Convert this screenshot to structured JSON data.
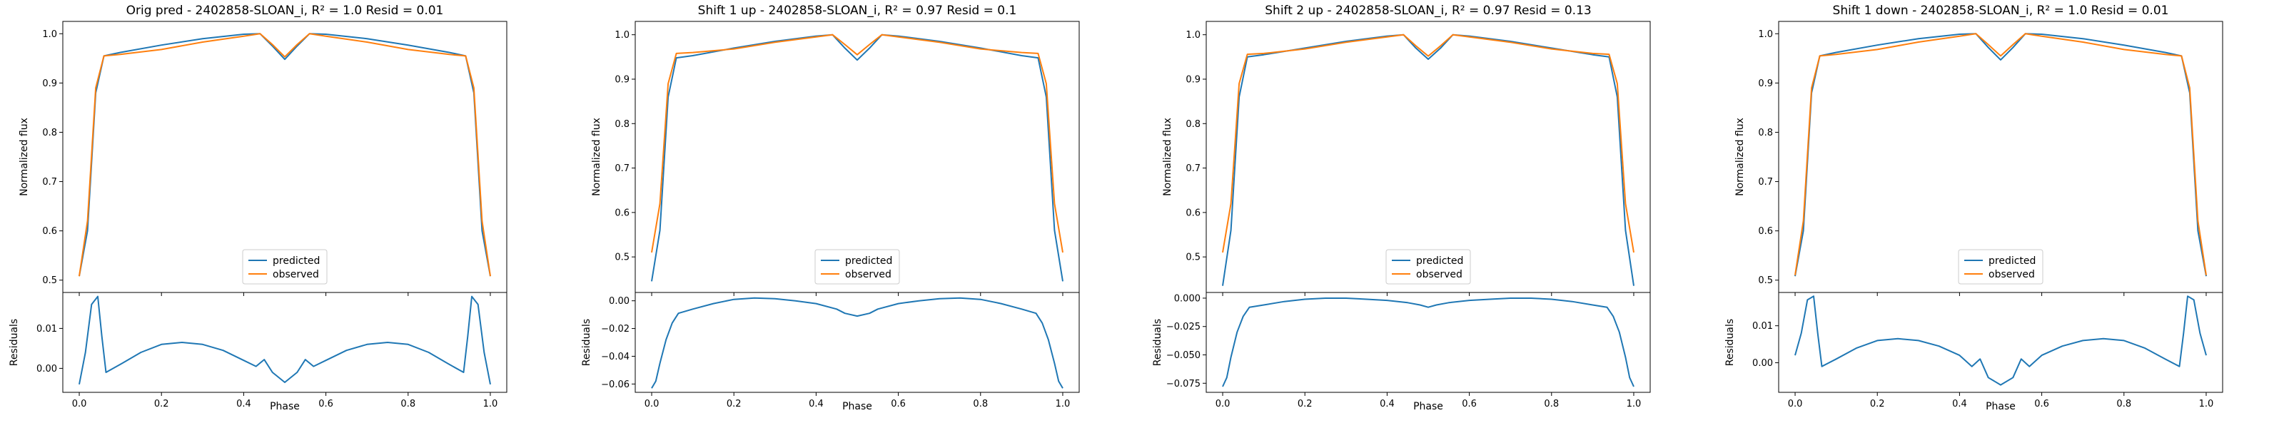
{
  "colors": {
    "predicted": "#1f77b4",
    "observed": "#ff7f0e"
  },
  "chart_data": [
    {
      "type": "line",
      "title": "Orig pred - 2402858-SLOAN_i, R² = 1.0 Resid = 0.01",
      "xlabel": "Phase",
      "ylabel": "Normalized flux",
      "resid_ylabel": "Residuals",
      "xlim": [
        -0.04,
        1.04
      ],
      "xticks": [
        0.0,
        0.2,
        0.4,
        0.6,
        0.8,
        1.0
      ],
      "xtick_labels": [
        "0.0",
        "0.2",
        "0.4",
        "0.6",
        "0.8",
        "1.0"
      ],
      "ylim": [
        0.475,
        1.025
      ],
      "yticks": [
        0.5,
        0.6,
        0.7,
        0.8,
        0.9,
        1.0
      ],
      "ytick_labels": [
        "0.5",
        "0.6",
        "0.7",
        "0.8",
        "0.9",
        "1.0"
      ],
      "resid_ylim": [
        -0.006,
        0.019
      ],
      "resid_yticks": [
        0.0,
        0.01
      ],
      "resid_ytick_labels": [
        "0.00",
        "0.01"
      ],
      "legend": "lower center",
      "series": [
        {
          "name": "predicted",
          "x": [
            0.0,
            0.02,
            0.04,
            0.06,
            0.1,
            0.2,
            0.3,
            0.4,
            0.44,
            0.47,
            0.5,
            0.53,
            0.56,
            0.6,
            0.7,
            0.8,
            0.9,
            0.94,
            0.96,
            0.98,
            1.0
          ],
          "y": [
            0.508,
            0.6,
            0.88,
            0.955,
            0.962,
            0.977,
            0.99,
            0.999,
            1.0,
            0.975,
            0.948,
            0.975,
            1.0,
            0.999,
            0.99,
            0.977,
            0.962,
            0.955,
            0.88,
            0.6,
            0.508
          ]
        },
        {
          "name": "observed",
          "x": [
            0.0,
            0.02,
            0.04,
            0.06,
            0.1,
            0.2,
            0.3,
            0.4,
            0.44,
            0.47,
            0.5,
            0.53,
            0.56,
            0.6,
            0.7,
            0.8,
            0.9,
            0.94,
            0.96,
            0.98,
            1.0
          ],
          "y": [
            0.508,
            0.62,
            0.89,
            0.955,
            0.958,
            0.968,
            0.983,
            0.995,
            1.0,
            0.978,
            0.953,
            0.978,
            1.0,
            0.995,
            0.983,
            0.968,
            0.958,
            0.955,
            0.89,
            0.62,
            0.508
          ]
        },
        {
          "name": "residual",
          "x": [
            0.0,
            0.015,
            0.03,
            0.045,
            0.055,
            0.065,
            0.1,
            0.15,
            0.2,
            0.25,
            0.3,
            0.35,
            0.4,
            0.43,
            0.45,
            0.47,
            0.5,
            0.53,
            0.55,
            0.57,
            0.6,
            0.65,
            0.7,
            0.75,
            0.8,
            0.85,
            0.9,
            0.935,
            0.945,
            0.955,
            0.97,
            0.985,
            1.0
          ],
          "y": [
            -0.004,
            0.004,
            0.016,
            0.018,
            0.008,
            -0.001,
            0.001,
            0.004,
            0.006,
            0.0065,
            0.006,
            0.0045,
            0.002,
            0.0005,
            0.0022,
            -0.001,
            -0.0035,
            -0.001,
            0.0022,
            0.0005,
            0.002,
            0.0045,
            0.006,
            0.0065,
            0.006,
            0.004,
            0.001,
            -0.001,
            0.008,
            0.018,
            0.016,
            0.004,
            -0.004
          ]
        }
      ]
    },
    {
      "type": "line",
      "title": "Shift 1 up - 2402858-SLOAN_i, R² = 0.97 Resid = 0.1",
      "xlabel": "Phase",
      "ylabel": "Normalized flux",
      "resid_ylabel": "Residuals",
      "xlim": [
        -0.04,
        1.04
      ],
      "xticks": [
        0.0,
        0.2,
        0.4,
        0.6,
        0.8,
        1.0
      ],
      "xtick_labels": [
        "0.0",
        "0.2",
        "0.4",
        "0.6",
        "0.8",
        "1.0"
      ],
      "ylim": [
        0.42,
        1.03
      ],
      "yticks": [
        0.5,
        0.6,
        0.7,
        0.8,
        0.9,
        1.0
      ],
      "ytick_labels": [
        "0.5",
        "0.6",
        "0.7",
        "0.8",
        "0.9",
        "1.0"
      ],
      "resid_ylim": [
        -0.066,
        0.006
      ],
      "resid_yticks": [
        -0.06,
        -0.04,
        -0.02,
        0.0
      ],
      "resid_ytick_labels": [
        "−0.06",
        "−0.04",
        "−0.02",
        "0.00"
      ],
      "legend": "lower center",
      "series": [
        {
          "name": "predicted",
          "x": [
            0.0,
            0.02,
            0.04,
            0.06,
            0.1,
            0.2,
            0.3,
            0.4,
            0.44,
            0.47,
            0.5,
            0.53,
            0.56,
            0.6,
            0.7,
            0.8,
            0.9,
            0.94,
            0.96,
            0.98,
            1.0
          ],
          "y": [
            0.445,
            0.56,
            0.86,
            0.948,
            0.953,
            0.97,
            0.985,
            0.997,
            1.0,
            0.97,
            0.943,
            0.97,
            1.0,
            0.997,
            0.985,
            0.97,
            0.953,
            0.948,
            0.86,
            0.56,
            0.445
          ]
        },
        {
          "name": "observed",
          "x": [
            0.0,
            0.02,
            0.04,
            0.06,
            0.1,
            0.2,
            0.3,
            0.4,
            0.44,
            0.47,
            0.5,
            0.53,
            0.56,
            0.6,
            0.7,
            0.8,
            0.9,
            0.94,
            0.96,
            0.98,
            1.0
          ],
          "y": [
            0.51,
            0.62,
            0.89,
            0.958,
            0.96,
            0.968,
            0.983,
            0.995,
            1.0,
            0.978,
            0.955,
            0.978,
            1.0,
            0.995,
            0.983,
            0.968,
            0.96,
            0.958,
            0.89,
            0.62,
            0.51
          ]
        },
        {
          "name": "residual",
          "x": [
            0.0,
            0.01,
            0.02,
            0.035,
            0.05,
            0.065,
            0.1,
            0.15,
            0.2,
            0.25,
            0.3,
            0.35,
            0.4,
            0.45,
            0.47,
            0.5,
            0.53,
            0.55,
            0.6,
            0.65,
            0.7,
            0.75,
            0.8,
            0.85,
            0.9,
            0.935,
            0.95,
            0.965,
            0.98,
            0.99,
            1.0
          ],
          "y": [
            -0.063,
            -0.058,
            -0.045,
            -0.028,
            -0.016,
            -0.009,
            -0.006,
            -0.002,
            0.001,
            0.002,
            0.0015,
            0.0,
            -0.002,
            -0.006,
            -0.009,
            -0.011,
            -0.009,
            -0.006,
            -0.002,
            0.0,
            0.0015,
            0.002,
            0.001,
            -0.002,
            -0.006,
            -0.009,
            -0.016,
            -0.028,
            -0.045,
            -0.058,
            -0.063
          ]
        }
      ]
    },
    {
      "type": "line",
      "title": "Shift 2 up - 2402858-SLOAN_i, R² = 0.97 Resid = 0.13",
      "xlabel": "Phase",
      "ylabel": "Normalized flux",
      "resid_ylabel": "Residuals",
      "xlim": [
        -0.04,
        1.04
      ],
      "xticks": [
        0.0,
        0.2,
        0.4,
        0.6,
        0.8,
        1.0
      ],
      "xtick_labels": [
        "0.0",
        "0.2",
        "0.4",
        "0.6",
        "0.8",
        "1.0"
      ],
      "ylim": [
        0.42,
        1.03
      ],
      "yticks": [
        0.5,
        0.6,
        0.7,
        0.8,
        0.9,
        1.0
      ],
      "ytick_labels": [
        "0.5",
        "0.6",
        "0.7",
        "0.8",
        "0.9",
        "1.0"
      ],
      "resid_ylim": [
        -0.083,
        0.005
      ],
      "resid_yticks": [
        -0.075,
        -0.05,
        -0.025,
        0.0
      ],
      "resid_ytick_labels": [
        "−0.075",
        "−0.050",
        "−0.025",
        "0.000"
      ],
      "legend": "lower center",
      "series": [
        {
          "name": "predicted",
          "x": [
            0.0,
            0.02,
            0.04,
            0.06,
            0.1,
            0.2,
            0.3,
            0.4,
            0.44,
            0.47,
            0.5,
            0.53,
            0.56,
            0.6,
            0.7,
            0.8,
            0.9,
            0.94,
            0.96,
            0.98,
            1.0
          ],
          "y": [
            0.435,
            0.56,
            0.86,
            0.95,
            0.955,
            0.97,
            0.985,
            0.997,
            1.0,
            0.97,
            0.945,
            0.97,
            1.0,
            0.997,
            0.985,
            0.97,
            0.955,
            0.95,
            0.86,
            0.56,
            0.435
          ]
        },
        {
          "name": "observed",
          "x": [
            0.0,
            0.02,
            0.04,
            0.06,
            0.1,
            0.2,
            0.3,
            0.4,
            0.44,
            0.47,
            0.5,
            0.53,
            0.56,
            0.6,
            0.7,
            0.8,
            0.9,
            0.94,
            0.96,
            0.98,
            1.0
          ],
          "y": [
            0.51,
            0.62,
            0.89,
            0.956,
            0.958,
            0.968,
            0.983,
            0.995,
            1.0,
            0.975,
            0.952,
            0.975,
            1.0,
            0.995,
            0.983,
            0.968,
            0.958,
            0.956,
            0.89,
            0.62,
            0.51
          ]
        },
        {
          "name": "residual",
          "x": [
            0.0,
            0.01,
            0.02,
            0.035,
            0.05,
            0.065,
            0.1,
            0.15,
            0.2,
            0.25,
            0.3,
            0.35,
            0.4,
            0.45,
            0.48,
            0.5,
            0.52,
            0.55,
            0.6,
            0.65,
            0.7,
            0.75,
            0.8,
            0.85,
            0.9,
            0.935,
            0.95,
            0.965,
            0.98,
            0.99,
            1.0
          ],
          "y": [
            -0.078,
            -0.07,
            -0.052,
            -0.03,
            -0.016,
            -0.008,
            -0.006,
            -0.003,
            -0.001,
            0.0,
            0.0,
            -0.001,
            -0.002,
            -0.004,
            -0.006,
            -0.008,
            -0.006,
            -0.004,
            -0.002,
            -0.001,
            0.0,
            0.0,
            -0.001,
            -0.003,
            -0.006,
            -0.008,
            -0.016,
            -0.03,
            -0.052,
            -0.07,
            -0.078
          ]
        }
      ]
    },
    {
      "type": "line",
      "title": "Shift 1 down - 2402858-SLOAN_i, R² = 1.0 Resid = 0.01",
      "xlabel": "Phase",
      "ylabel": "Normalized flux",
      "resid_ylabel": "Residuals",
      "xlim": [
        -0.04,
        1.04
      ],
      "xticks": [
        0.0,
        0.2,
        0.4,
        0.6,
        0.8,
        1.0
      ],
      "xtick_labels": [
        "0.0",
        "0.2",
        "0.4",
        "0.6",
        "0.8",
        "1.0"
      ],
      "ylim": [
        0.475,
        1.025
      ],
      "yticks": [
        0.5,
        0.6,
        0.7,
        0.8,
        0.9,
        1.0
      ],
      "ytick_labels": [
        "0.5",
        "0.6",
        "0.7",
        "0.8",
        "0.9",
        "1.0"
      ],
      "resid_ylim": [
        -0.008,
        0.019
      ],
      "resid_yticks": [
        0.0,
        0.01
      ],
      "resid_ytick_labels": [
        "0.00",
        "0.01"
      ],
      "legend": "lower center",
      "series": [
        {
          "name": "predicted",
          "x": [
            0.0,
            0.02,
            0.04,
            0.06,
            0.1,
            0.2,
            0.3,
            0.4,
            0.44,
            0.47,
            0.5,
            0.53,
            0.56,
            0.6,
            0.7,
            0.8,
            0.9,
            0.94,
            0.96,
            0.98,
            1.0
          ],
          "y": [
            0.508,
            0.6,
            0.88,
            0.955,
            0.962,
            0.977,
            0.99,
            0.999,
            1.0,
            0.972,
            0.947,
            0.972,
            1.0,
            0.999,
            0.99,
            0.977,
            0.962,
            0.955,
            0.88,
            0.6,
            0.508
          ]
        },
        {
          "name": "observed",
          "x": [
            0.0,
            0.02,
            0.04,
            0.06,
            0.1,
            0.2,
            0.3,
            0.4,
            0.44,
            0.47,
            0.5,
            0.53,
            0.56,
            0.6,
            0.7,
            0.8,
            0.9,
            0.94,
            0.96,
            0.98,
            1.0
          ],
          "y": [
            0.51,
            0.62,
            0.89,
            0.955,
            0.958,
            0.968,
            0.983,
            0.995,
            1.0,
            0.978,
            0.955,
            0.978,
            1.0,
            0.995,
            0.983,
            0.968,
            0.958,
            0.955,
            0.89,
            0.62,
            0.51
          ]
        },
        {
          "name": "residual",
          "x": [
            0.0,
            0.015,
            0.03,
            0.045,
            0.055,
            0.065,
            0.1,
            0.15,
            0.2,
            0.25,
            0.3,
            0.35,
            0.4,
            0.43,
            0.45,
            0.47,
            0.5,
            0.53,
            0.55,
            0.57,
            0.6,
            0.65,
            0.7,
            0.75,
            0.8,
            0.85,
            0.9,
            0.935,
            0.945,
            0.955,
            0.97,
            0.985,
            1.0
          ],
          "y": [
            0.002,
            0.008,
            0.017,
            0.018,
            0.008,
            -0.001,
            0.001,
            0.004,
            0.006,
            0.0065,
            0.006,
            0.0045,
            0.002,
            -0.001,
            0.001,
            -0.004,
            -0.006,
            -0.004,
            0.001,
            -0.001,
            0.002,
            0.0045,
            0.006,
            0.0065,
            0.006,
            0.004,
            0.001,
            -0.001,
            0.008,
            0.018,
            0.017,
            0.008,
            0.002
          ]
        }
      ]
    }
  ]
}
